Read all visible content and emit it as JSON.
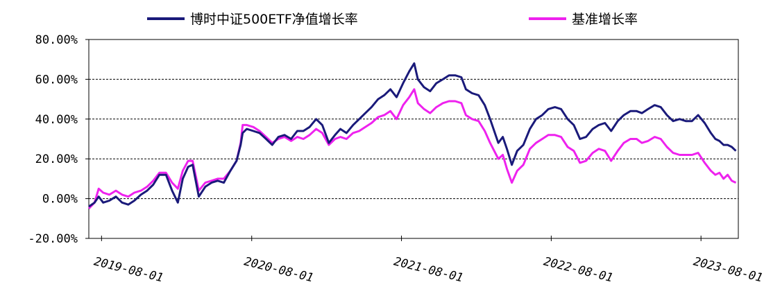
{
  "chart_data": {
    "type": "line",
    "title": "",
    "xlabel": "",
    "ylabel": "",
    "x_range": [
      "2019-07-01",
      "2023-10-31"
    ],
    "ylim": [
      -20,
      80
    ],
    "y_tick_labels": [
      "80.00%",
      "60.00%",
      "40.00%",
      "20.00%",
      "0.00%",
      "-20.00%"
    ],
    "y_ticks": [
      80,
      60,
      40,
      20,
      0,
      -20
    ],
    "x_ticks": [
      "2019-08-01",
      "2020-08-01",
      "2021-08-01",
      "2022-08-01",
      "2023-08-01"
    ],
    "x_tick_labels": [
      "2019-08-01",
      "2020-08-01",
      "2021-08-01",
      "2022-08-01",
      "2023-08-01"
    ],
    "grid": "horizontal-dashed",
    "legend_position": "top",
    "series": [
      {
        "name": "博时中证500ETF净值增长率",
        "color": "#1a1a7a",
        "points": [
          [
            "2019-07-01",
            -4
          ],
          [
            "2019-07-15",
            -2
          ],
          [
            "2019-07-25",
            1
          ],
          [
            "2019-08-05",
            -2
          ],
          [
            "2019-08-20",
            -1
          ],
          [
            "2019-09-05",
            1
          ],
          [
            "2019-09-20",
            -2
          ],
          [
            "2019-10-05",
            -3
          ],
          [
            "2019-10-20",
            -1
          ],
          [
            "2019-11-05",
            2
          ],
          [
            "2019-11-20",
            4
          ],
          [
            "2019-12-05",
            7
          ],
          [
            "2019-12-20",
            12
          ],
          [
            "2020-01-05",
            12
          ],
          [
            "2020-01-20",
            4
          ],
          [
            "2020-02-03",
            -2
          ],
          [
            "2020-02-15",
            10
          ],
          [
            "2020-02-28",
            16
          ],
          [
            "2020-03-10",
            17
          ],
          [
            "2020-03-25",
            1
          ],
          [
            "2020-04-10",
            6
          ],
          [
            "2020-04-25",
            8
          ],
          [
            "2020-05-10",
            9
          ],
          [
            "2020-05-25",
            8
          ],
          [
            "2020-06-10",
            14
          ],
          [
            "2020-06-25",
            19
          ],
          [
            "2020-07-05",
            27
          ],
          [
            "2020-07-10",
            33
          ],
          [
            "2020-07-20",
            35
          ],
          [
            "2020-08-05",
            34
          ],
          [
            "2020-08-20",
            33
          ],
          [
            "2020-09-05",
            30
          ],
          [
            "2020-09-20",
            27
          ],
          [
            "2020-10-05",
            31
          ],
          [
            "2020-10-20",
            32
          ],
          [
            "2020-11-05",
            30
          ],
          [
            "2020-11-20",
            34
          ],
          [
            "2020-12-05",
            34
          ],
          [
            "2020-12-20",
            36
          ],
          [
            "2021-01-05",
            40
          ],
          [
            "2021-01-20",
            37
          ],
          [
            "2021-02-05",
            28
          ],
          [
            "2021-02-20",
            32
          ],
          [
            "2021-03-05",
            35
          ],
          [
            "2021-03-20",
            33
          ],
          [
            "2021-04-05",
            37
          ],
          [
            "2021-04-20",
            40
          ],
          [
            "2021-05-05",
            43
          ],
          [
            "2021-05-20",
            46
          ],
          [
            "2021-06-05",
            50
          ],
          [
            "2021-06-20",
            52
          ],
          [
            "2021-07-05",
            55
          ],
          [
            "2021-07-20",
            51
          ],
          [
            "2021-08-05",
            58
          ],
          [
            "2021-08-20",
            64
          ],
          [
            "2021-09-01",
            68
          ],
          [
            "2021-09-10",
            60
          ],
          [
            "2021-09-25",
            56
          ],
          [
            "2021-10-10",
            54
          ],
          [
            "2021-10-25",
            58
          ],
          [
            "2021-11-10",
            60
          ],
          [
            "2021-11-25",
            62
          ],
          [
            "2021-12-10",
            62
          ],
          [
            "2021-12-25",
            61
          ],
          [
            "2022-01-05",
            55
          ],
          [
            "2022-01-20",
            53
          ],
          [
            "2022-02-05",
            52
          ],
          [
            "2022-02-20",
            47
          ],
          [
            "2022-03-05",
            40
          ],
          [
            "2022-03-15",
            34
          ],
          [
            "2022-03-25",
            28
          ],
          [
            "2022-04-05",
            31
          ],
          [
            "2022-04-15",
            25
          ],
          [
            "2022-04-27",
            17
          ],
          [
            "2022-05-10",
            24
          ],
          [
            "2022-05-25",
            27
          ],
          [
            "2022-06-10",
            35
          ],
          [
            "2022-06-25",
            40
          ],
          [
            "2022-07-10",
            42
          ],
          [
            "2022-07-25",
            45
          ],
          [
            "2022-08-10",
            46
          ],
          [
            "2022-08-25",
            45
          ],
          [
            "2022-09-10",
            40
          ],
          [
            "2022-09-25",
            37
          ],
          [
            "2022-10-10",
            30
          ],
          [
            "2022-10-25",
            31
          ],
          [
            "2022-11-10",
            35
          ],
          [
            "2022-11-25",
            37
          ],
          [
            "2022-12-10",
            38
          ],
          [
            "2022-12-25",
            34
          ],
          [
            "2023-01-10",
            39
          ],
          [
            "2023-01-25",
            42
          ],
          [
            "2023-02-10",
            44
          ],
          [
            "2023-02-25",
            44
          ],
          [
            "2023-03-10",
            43
          ],
          [
            "2023-03-25",
            45
          ],
          [
            "2023-04-10",
            47
          ],
          [
            "2023-04-25",
            46
          ],
          [
            "2023-05-10",
            42
          ],
          [
            "2023-05-25",
            39
          ],
          [
            "2023-06-10",
            40
          ],
          [
            "2023-06-25",
            39
          ],
          [
            "2023-07-10",
            39
          ],
          [
            "2023-07-25",
            42
          ],
          [
            "2023-08-10",
            38
          ],
          [
            "2023-08-25",
            33
          ],
          [
            "2023-09-05",
            30
          ],
          [
            "2023-09-15",
            29
          ],
          [
            "2023-09-25",
            27
          ],
          [
            "2023-10-05",
            27
          ],
          [
            "2023-10-15",
            26
          ],
          [
            "2023-10-25",
            24
          ]
        ]
      },
      {
        "name": "基准增长率",
        "color": "#ee22ee",
        "points": [
          [
            "2019-07-01",
            -5
          ],
          [
            "2019-07-15",
            -2
          ],
          [
            "2019-07-25",
            5
          ],
          [
            "2019-08-05",
            3
          ],
          [
            "2019-08-20",
            2
          ],
          [
            "2019-09-05",
            4
          ],
          [
            "2019-09-20",
            2
          ],
          [
            "2019-10-05",
            1
          ],
          [
            "2019-10-20",
            3
          ],
          [
            "2019-11-05",
            4
          ],
          [
            "2019-11-20",
            6
          ],
          [
            "2019-12-05",
            9
          ],
          [
            "2019-12-20",
            13
          ],
          [
            "2020-01-05",
            13
          ],
          [
            "2020-01-20",
            8
          ],
          [
            "2020-02-03",
            5
          ],
          [
            "2020-02-15",
            14
          ],
          [
            "2020-02-28",
            19
          ],
          [
            "2020-03-10",
            19
          ],
          [
            "2020-03-25",
            4
          ],
          [
            "2020-04-10",
            8
          ],
          [
            "2020-04-25",
            9
          ],
          [
            "2020-05-10",
            10
          ],
          [
            "2020-05-25",
            10
          ],
          [
            "2020-06-10",
            14
          ],
          [
            "2020-06-25",
            19
          ],
          [
            "2020-07-05",
            28
          ],
          [
            "2020-07-10",
            37
          ],
          [
            "2020-07-20",
            37
          ],
          [
            "2020-08-05",
            36
          ],
          [
            "2020-08-20",
            34
          ],
          [
            "2020-09-05",
            31
          ],
          [
            "2020-09-20",
            28
          ],
          [
            "2020-10-05",
            30
          ],
          [
            "2020-10-20",
            31
          ],
          [
            "2020-11-05",
            29
          ],
          [
            "2020-11-20",
            31
          ],
          [
            "2020-12-05",
            30
          ],
          [
            "2020-12-20",
            32
          ],
          [
            "2021-01-05",
            35
          ],
          [
            "2021-01-20",
            33
          ],
          [
            "2021-02-05",
            27
          ],
          [
            "2021-02-20",
            30
          ],
          [
            "2021-03-05",
            31
          ],
          [
            "2021-03-20",
            30
          ],
          [
            "2021-04-05",
            33
          ],
          [
            "2021-04-20",
            34
          ],
          [
            "2021-05-05",
            36
          ],
          [
            "2021-05-20",
            38
          ],
          [
            "2021-06-05",
            41
          ],
          [
            "2021-06-20",
            42
          ],
          [
            "2021-07-05",
            44
          ],
          [
            "2021-07-20",
            40
          ],
          [
            "2021-08-05",
            47
          ],
          [
            "2021-08-20",
            51
          ],
          [
            "2021-09-01",
            55
          ],
          [
            "2021-09-10",
            48
          ],
          [
            "2021-09-25",
            45
          ],
          [
            "2021-10-10",
            43
          ],
          [
            "2021-10-25",
            46
          ],
          [
            "2021-11-10",
            48
          ],
          [
            "2021-11-25",
            49
          ],
          [
            "2021-12-10",
            49
          ],
          [
            "2021-12-25",
            48
          ],
          [
            "2022-01-05",
            42
          ],
          [
            "2022-01-20",
            40
          ],
          [
            "2022-02-05",
            39
          ],
          [
            "2022-02-20",
            34
          ],
          [
            "2022-03-05",
            28
          ],
          [
            "2022-03-15",
            24
          ],
          [
            "2022-03-25",
            20
          ],
          [
            "2022-04-05",
            22
          ],
          [
            "2022-04-15",
            15
          ],
          [
            "2022-04-27",
            8
          ],
          [
            "2022-05-10",
            14
          ],
          [
            "2022-05-25",
            17
          ],
          [
            "2022-06-10",
            25
          ],
          [
            "2022-06-25",
            28
          ],
          [
            "2022-07-10",
            30
          ],
          [
            "2022-07-25",
            32
          ],
          [
            "2022-08-10",
            32
          ],
          [
            "2022-08-25",
            31
          ],
          [
            "2022-09-10",
            26
          ],
          [
            "2022-09-25",
            24
          ],
          [
            "2022-10-10",
            18
          ],
          [
            "2022-10-25",
            19
          ],
          [
            "2022-11-10",
            23
          ],
          [
            "2022-11-25",
            25
          ],
          [
            "2022-12-10",
            24
          ],
          [
            "2022-12-25",
            19
          ],
          [
            "2023-01-10",
            24
          ],
          [
            "2023-01-25",
            28
          ],
          [
            "2023-02-10",
            30
          ],
          [
            "2023-02-25",
            30
          ],
          [
            "2023-03-10",
            28
          ],
          [
            "2023-03-25",
            29
          ],
          [
            "2023-04-10",
            31
          ],
          [
            "2023-04-25",
            30
          ],
          [
            "2023-05-10",
            26
          ],
          [
            "2023-05-25",
            23
          ],
          [
            "2023-06-10",
            22
          ],
          [
            "2023-06-25",
            22
          ],
          [
            "2023-07-10",
            22
          ],
          [
            "2023-07-25",
            23
          ],
          [
            "2023-08-10",
            18
          ],
          [
            "2023-08-25",
            14
          ],
          [
            "2023-09-05",
            12
          ],
          [
            "2023-09-15",
            13
          ],
          [
            "2023-09-25",
            10
          ],
          [
            "2023-10-05",
            12
          ],
          [
            "2023-10-15",
            9
          ],
          [
            "2023-10-25",
            8
          ]
        ]
      }
    ]
  }
}
